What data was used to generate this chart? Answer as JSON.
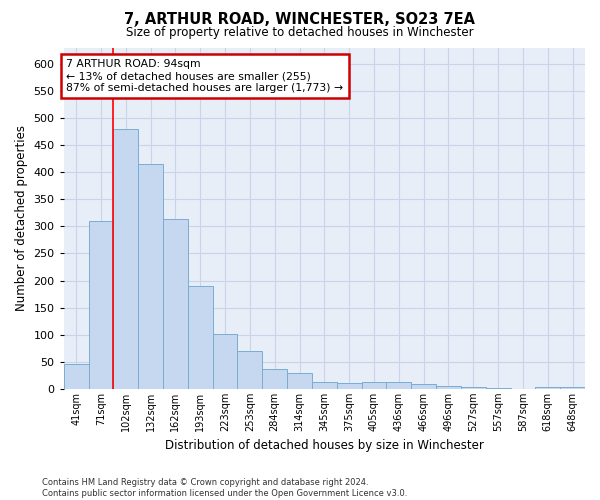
{
  "title1": "7, ARTHUR ROAD, WINCHESTER, SO23 7EA",
  "title2": "Size of property relative to detached houses in Winchester",
  "xlabel": "Distribution of detached houses by size in Winchester",
  "ylabel": "Number of detached properties",
  "categories": [
    "41sqm",
    "71sqm",
    "102sqm",
    "132sqm",
    "162sqm",
    "193sqm",
    "223sqm",
    "253sqm",
    "284sqm",
    "314sqm",
    "345sqm",
    "375sqm",
    "405sqm",
    "436sqm",
    "466sqm",
    "496sqm",
    "527sqm",
    "557sqm",
    "587sqm",
    "618sqm",
    "648sqm"
  ],
  "values": [
    46,
    310,
    480,
    415,
    313,
    190,
    102,
    69,
    37,
    30,
    13,
    11,
    13,
    12,
    9,
    5,
    4,
    1,
    0,
    4,
    4
  ],
  "bar_color": "#c5d8f0",
  "bar_edge_color": "#7aadd4",
  "annotation_text": "7 ARTHUR ROAD: 94sqm\n← 13% of detached houses are smaller (255)\n87% of semi-detached houses are larger (1,773) →",
  "annotation_box_color": "white",
  "annotation_box_edge_color": "#cc0000",
  "ylim": [
    0,
    630
  ],
  "yticks": [
    0,
    50,
    100,
    150,
    200,
    250,
    300,
    350,
    400,
    450,
    500,
    550,
    600
  ],
  "grid_color": "#c8d4e8",
  "background_color": "#e8eef8",
  "footnote": "Contains HM Land Registry data © Crown copyright and database right 2024.\nContains public sector information licensed under the Open Government Licence v3.0."
}
